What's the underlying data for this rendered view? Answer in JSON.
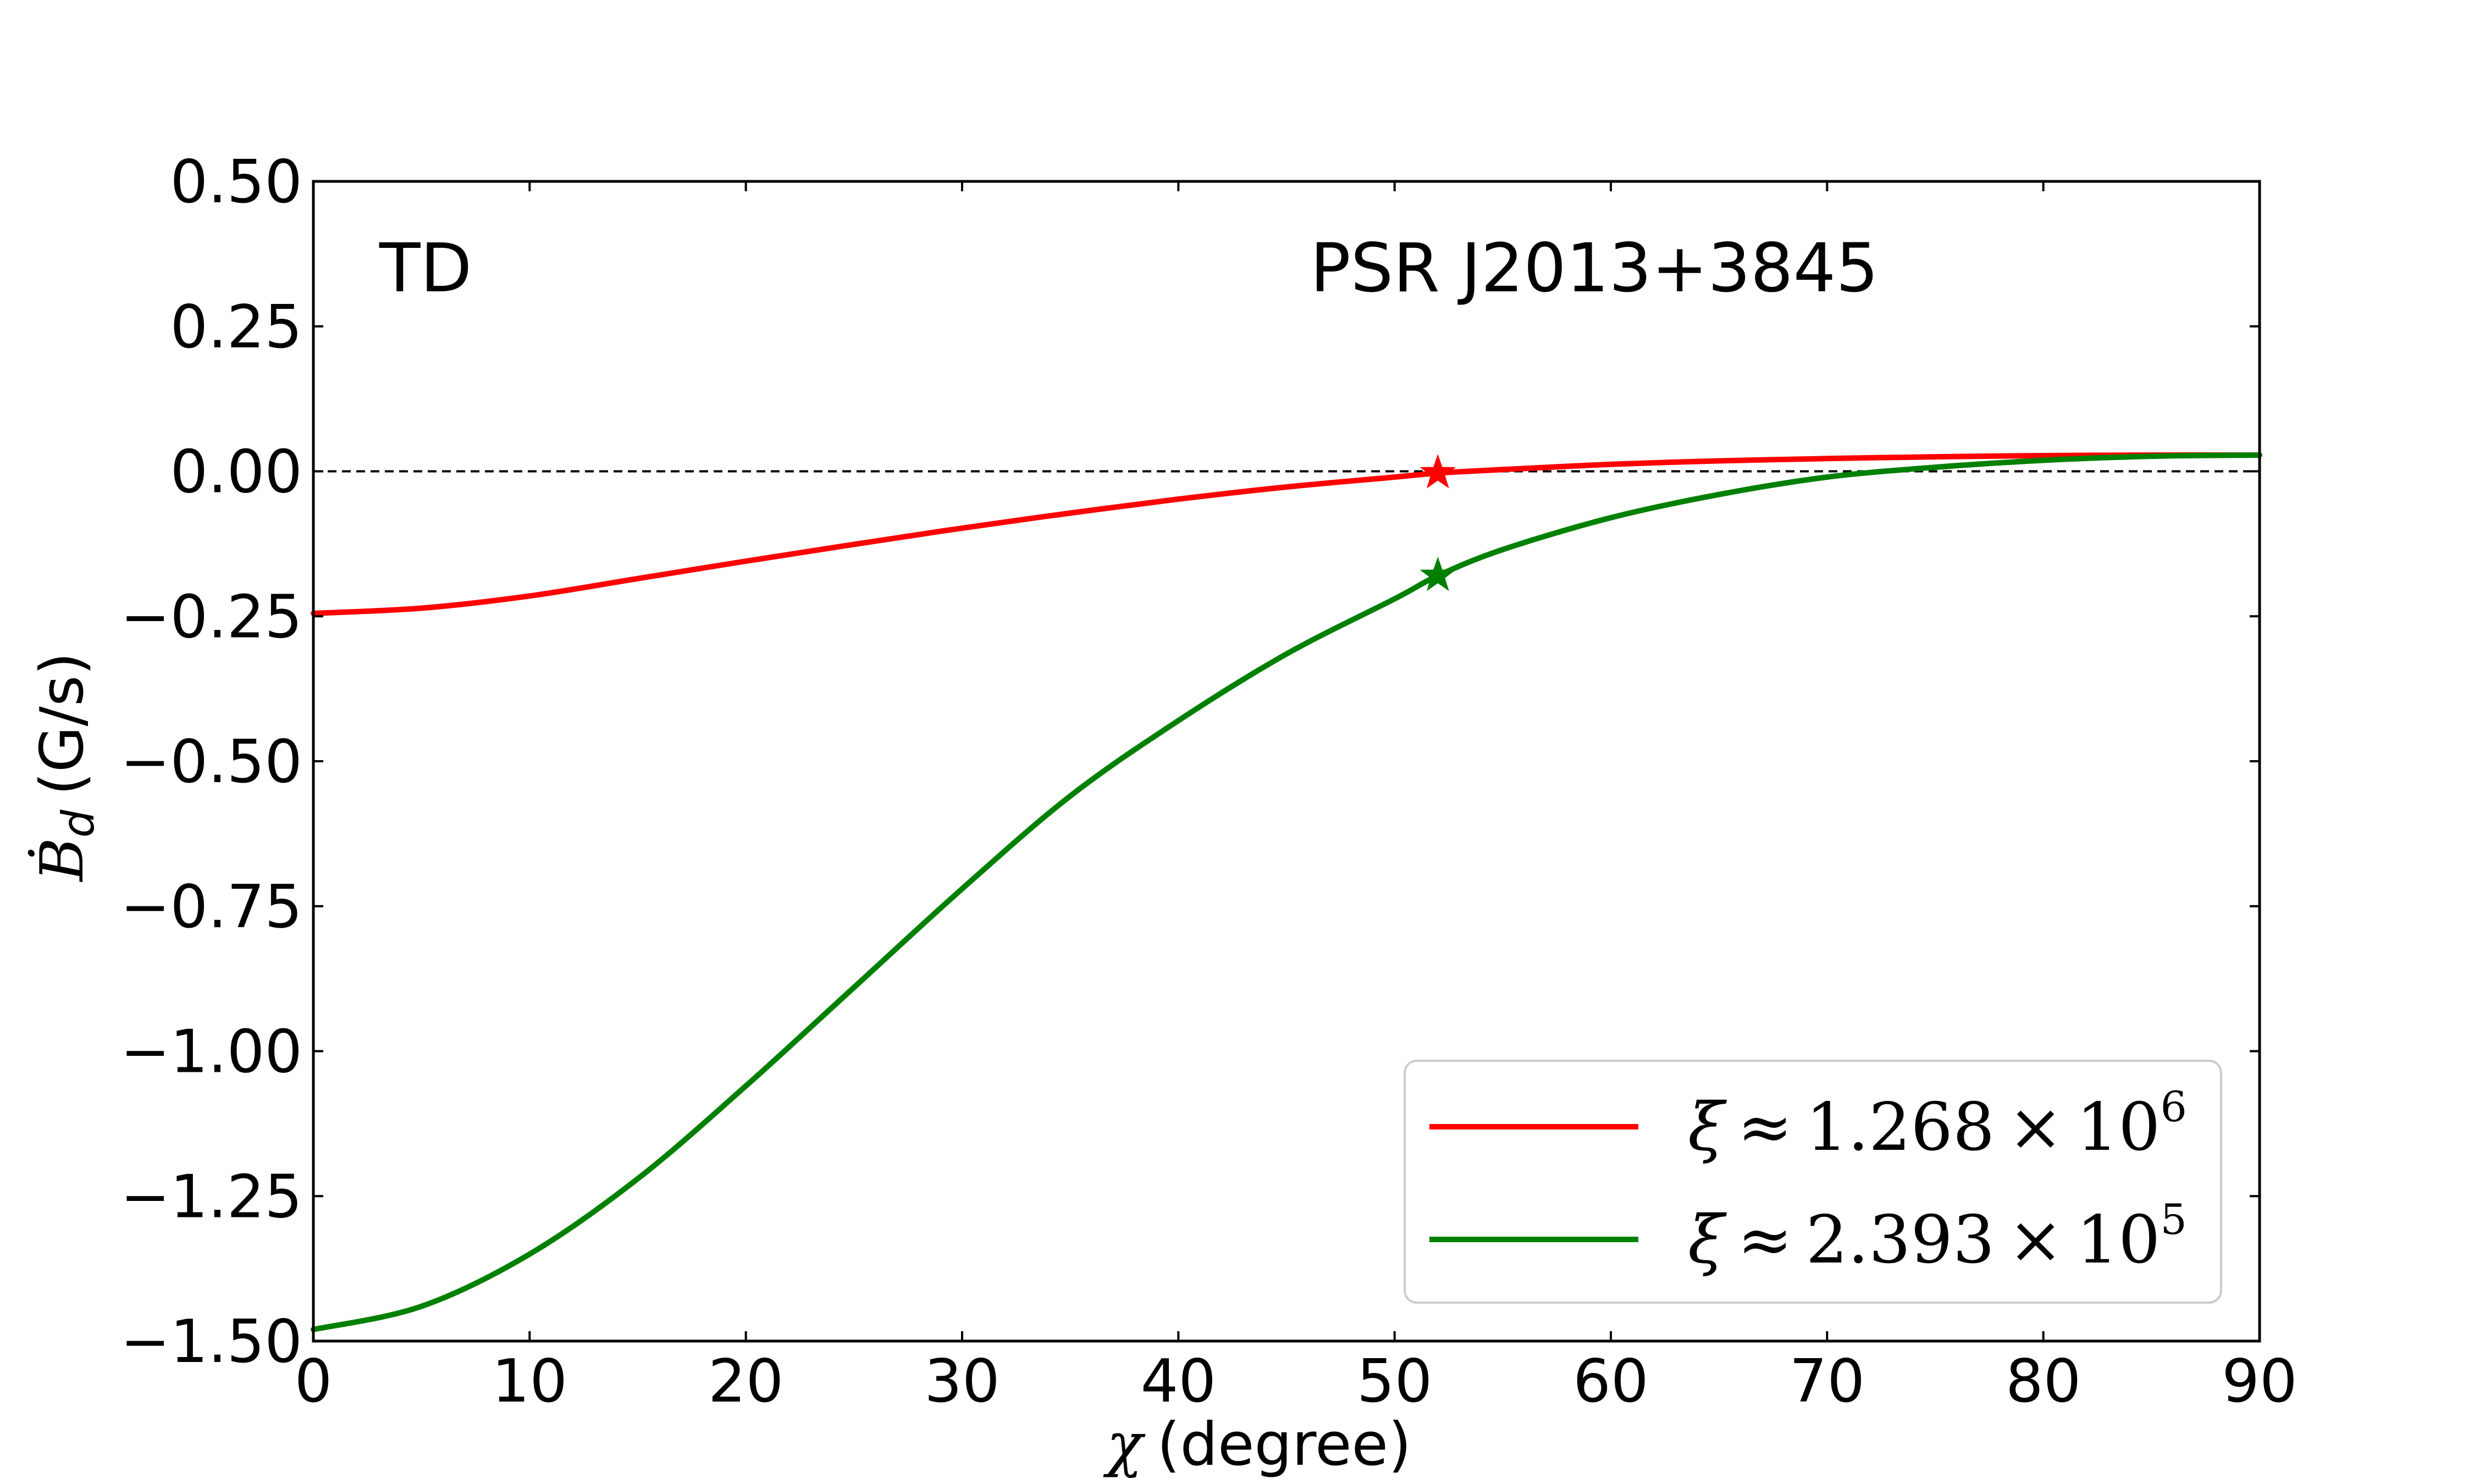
{
  "chart_data": {
    "type": "line",
    "annotations": {
      "left": "TD",
      "right": "PSR J2013+3845"
    },
    "xlabel": {
      "symbol": "χ",
      "text": "(degree)"
    },
    "ylabel": {
      "symbol": "Ḃ",
      "subscript": "d",
      "text": "(G/s)"
    },
    "xlim": [
      0,
      90
    ],
    "ylim": [
      -1.5,
      0.5
    ],
    "x_ticks": [
      0,
      10,
      20,
      30,
      40,
      50,
      60,
      70,
      80,
      90
    ],
    "x_tick_labels": [
      "0",
      "10",
      "20",
      "30",
      "40",
      "50",
      "60",
      "70",
      "80",
      "90"
    ],
    "y_ticks": [
      0.5,
      0.25,
      0.0,
      -0.25,
      -0.5,
      -0.75,
      -1.0,
      -1.25,
      -1.5
    ],
    "y_tick_labels": [
      "0.50",
      "0.25",
      "0.00",
      "−0.25",
      "−0.50",
      "−0.75",
      "−1.00",
      "−1.25",
      "−1.50"
    ],
    "reference_line": {
      "y": 0.0,
      "style": "dashed",
      "color": "#000000"
    },
    "grid": false,
    "legend_position": "bottom-right",
    "x": [
      0,
      5,
      10,
      15,
      20,
      25,
      30,
      35,
      40,
      45,
      50,
      52,
      55,
      60,
      65,
      70,
      75,
      80,
      85,
      90
    ],
    "series": [
      {
        "name": "ξ ≈ 1.268 × 10^6",
        "legend": {
          "lhs": "ξ",
          "op": "≈",
          "mant": "1.268",
          "times": "×",
          "base": "10",
          "exp": "6"
        },
        "color": "#ff0000",
        "values": [
          -0.245,
          -0.236,
          -0.215,
          -0.185,
          -0.155,
          -0.126,
          -0.098,
          -0.072,
          -0.048,
          -0.027,
          -0.01,
          -0.003,
          0.003,
          0.012,
          0.018,
          0.022,
          0.025,
          0.027,
          0.028,
          0.028
        ],
        "marker": {
          "x": 52,
          "y": -0.003,
          "shape": "star"
        }
      },
      {
        "name": "ξ ≈ 2.393 × 10^5",
        "legend": {
          "lhs": "ξ",
          "op": "≈",
          "mant": "2.393",
          "times": "×",
          "base": "10",
          "exp": "5"
        },
        "color": "#008000",
        "values": [
          -1.48,
          -1.44,
          -1.35,
          -1.22,
          -1.06,
          -0.89,
          -0.72,
          -0.56,
          -0.43,
          -0.315,
          -0.22,
          -0.18,
          -0.135,
          -0.08,
          -0.04,
          -0.01,
          0.007,
          0.019,
          0.026,
          0.028
        ],
        "marker": {
          "x": 52,
          "y": -0.18,
          "shape": "star"
        }
      }
    ]
  }
}
